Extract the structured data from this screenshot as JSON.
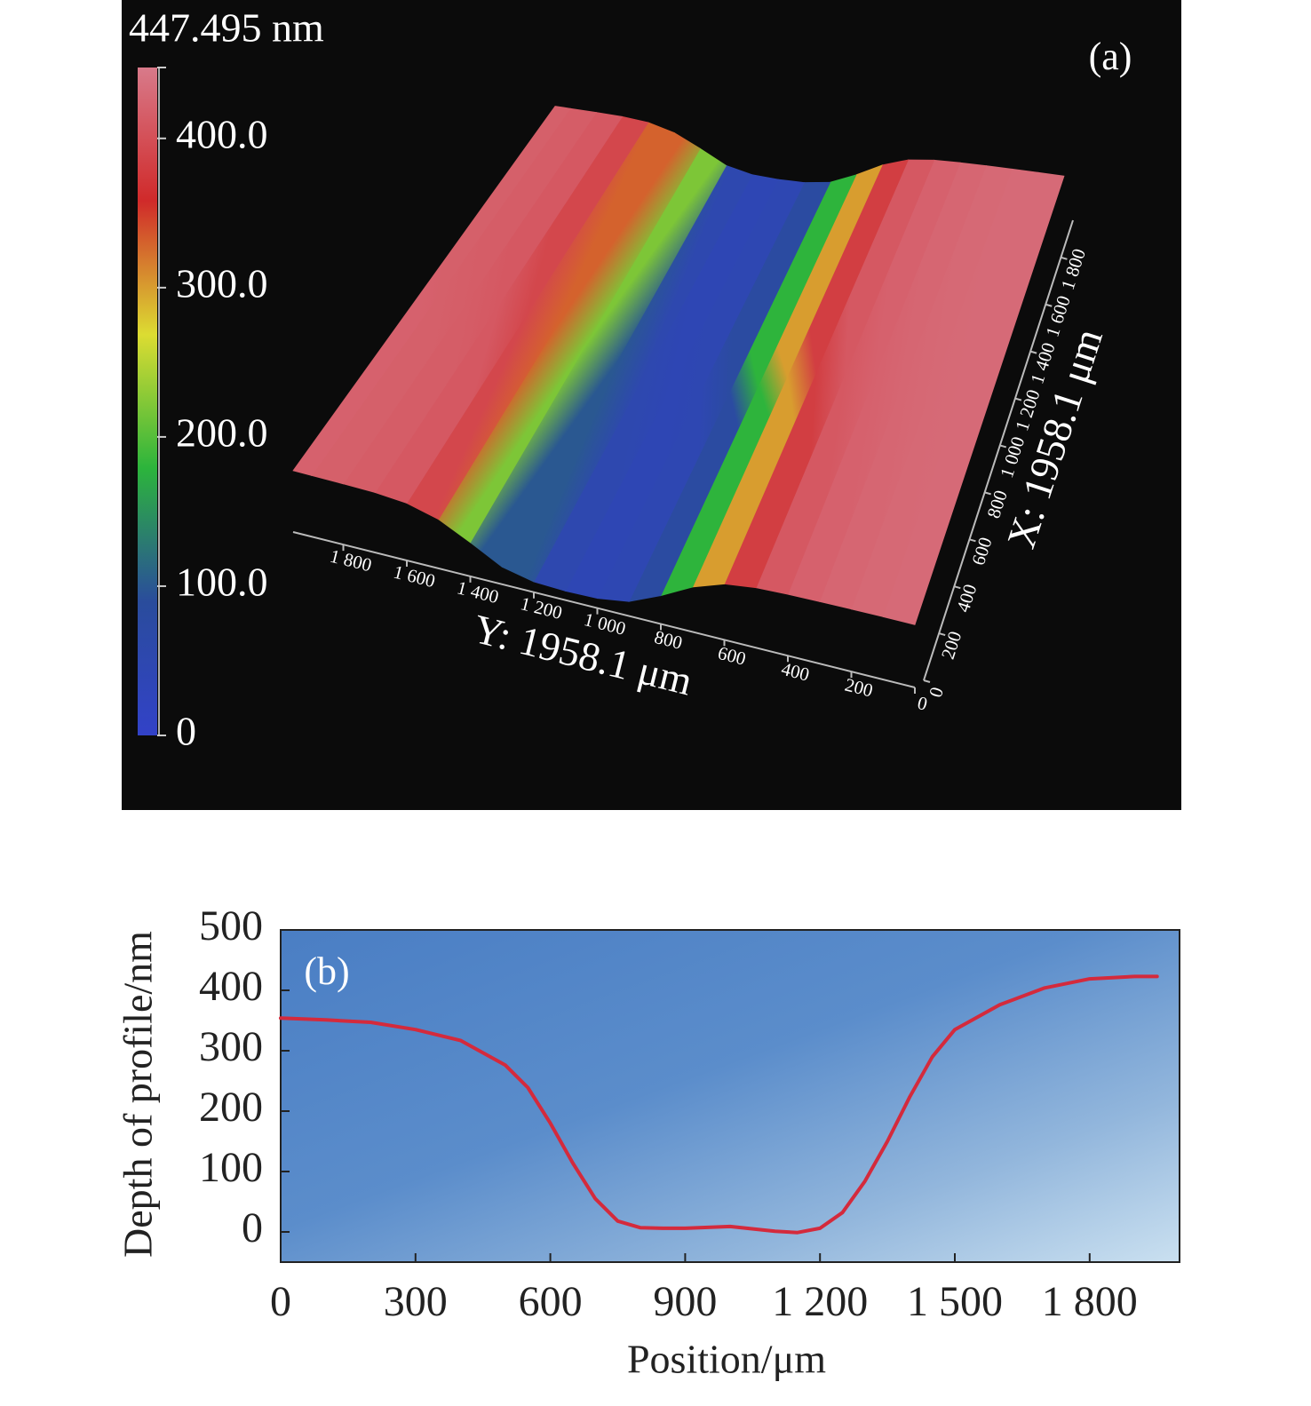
{
  "chart_data": [
    {
      "type": "surface",
      "annotation": "(a)",
      "xlabel": "Y: 1958.1 μm",
      "ylabel": "X: 1958.1 μm",
      "x": [
        0,
        100,
        200,
        300,
        400,
        500,
        600,
        700,
        800,
        900,
        1000,
        1100,
        1200,
        1300,
        1400,
        1500,
        1600,
        1700,
        1800,
        1900,
        1958.1
      ],
      "values": [
        430,
        430,
        428,
        425,
        420,
        410,
        380,
        300,
        180,
        80,
        45,
        40,
        50,
        100,
        220,
        330,
        390,
        410,
        415,
        418,
        420
      ],
      "xlim": [
        0,
        1958.1
      ],
      "xticks": [
        0,
        200,
        400,
        600,
        800,
        {
          "value": 1000,
          "label": "1 000"
        },
        {
          "value": 1200,
          "label": "1 200"
        },
        {
          "value": 1400,
          "label": "1 400"
        },
        {
          "value": 1600,
          "label": "1 600"
        },
        {
          "value": 1800,
          "label": "1 800"
        }
      ],
      "ylim": [
        0,
        1958.1
      ],
      "yticks": [
        0,
        200,
        400,
        600,
        800,
        {
          "value": 1000,
          "label": "1 000"
        },
        {
          "value": 1200,
          "label": "1 200"
        },
        {
          "value": 1400,
          "label": "1 400"
        },
        {
          "value": 1600,
          "label": "1 600"
        },
        {
          "value": 1800,
          "label": "1 800"
        }
      ],
      "zlim": [
        0,
        447.495
      ],
      "zticks": [
        0,
        {
          "value": 100,
          "label": "100.0"
        },
        {
          "value": 200,
          "label": "200.0"
        },
        {
          "value": 300,
          "label": "300.0"
        },
        {
          "value": 400,
          "label": "400.0"
        },
        {
          "value": 447.495,
          "label": "447.495 nm"
        }
      ],
      "colors": [
        "#3242c8",
        "#2a4c9c",
        "#2cb43c",
        "#dcdc32",
        "#d02a2a",
        "#d87a8a"
      ]
    },
    {
      "type": "line",
      "annotation": "(b)",
      "xlabel": "Position/μm",
      "ylabel": "Depth of profile/nm",
      "x": [
        0,
        100,
        200,
        300,
        400,
        500,
        550,
        600,
        650,
        700,
        750,
        800,
        850,
        900,
        1000,
        1100,
        1150,
        1200,
        1250,
        1300,
        1350,
        1400,
        1450,
        1500,
        1600,
        1700,
        1800,
        1900,
        1950
      ],
      "values": [
        354,
        351,
        347,
        335,
        317,
        276,
        239,
        180,
        114,
        55,
        18,
        7,
        6,
        6,
        9,
        1,
        -1,
        6,
        32,
        84,
        150,
        224,
        290,
        335,
        376,
        404,
        419,
        423,
        423
      ],
      "color": "#d42a3c",
      "xlim": [
        0,
        2000
      ],
      "xticks": [
        0,
        300,
        600,
        900,
        {
          "value": 1200,
          "label": "1 200"
        },
        {
          "value": 1500,
          "label": "1 500"
        },
        {
          "value": 1800,
          "label": "1 800"
        }
      ],
      "ylim": [
        -50,
        500
      ],
      "yticks": [
        0,
        100,
        200,
        300,
        400,
        500
      ],
      "grid": false
    }
  ]
}
